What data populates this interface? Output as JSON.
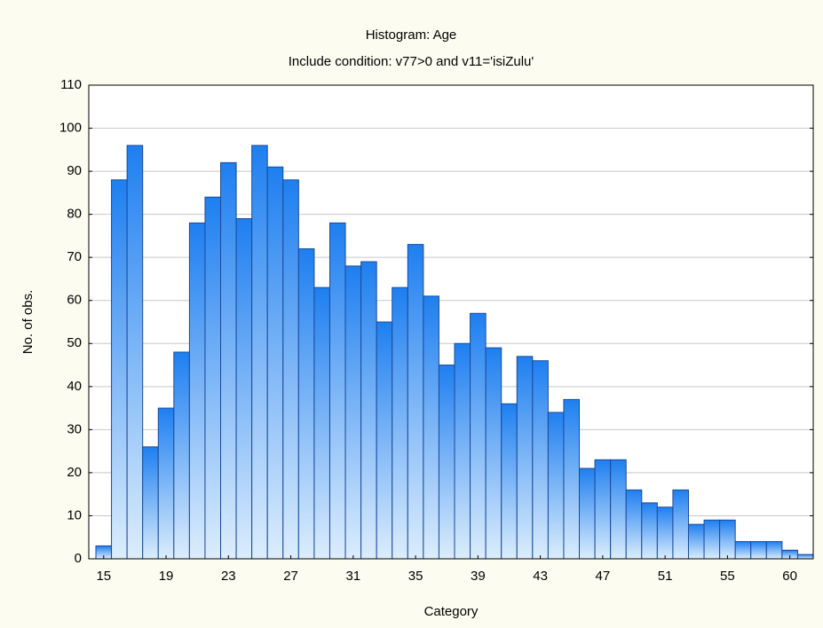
{
  "chart_data": {
    "type": "bar",
    "title": "Histogram: Age",
    "subtitle": "Include condition: v77>0 and v11='isiZulu'",
    "x_label": "Category",
    "y_label": "No. of obs.",
    "categories": [
      "15",
      null,
      null,
      null,
      "19",
      null,
      null,
      null,
      "23",
      null,
      null,
      null,
      "27",
      null,
      null,
      null,
      "31",
      null,
      null,
      null,
      "35",
      null,
      null,
      null,
      "39",
      null,
      null,
      null,
      "43",
      null,
      null,
      null,
      "47",
      null,
      null,
      null,
      "51",
      null,
      null,
      null,
      "55",
      null,
      null,
      null,
      "60",
      null
    ],
    "values": [
      3,
      88,
      96,
      26,
      35,
      48,
      78,
      84,
      92,
      79,
      96,
      91,
      88,
      72,
      63,
      78,
      68,
      69,
      55,
      63,
      73,
      61,
      45,
      50,
      57,
      49,
      36,
      47,
      46,
      34,
      37,
      21,
      23,
      23,
      16,
      13,
      12,
      16,
      8,
      9,
      9,
      4,
      4,
      4,
      2,
      1
    ],
    "color": "#1f7fef",
    "ylim": [
      0,
      110
    ],
    "yticks": [
      0,
      10,
      20,
      30,
      40,
      50,
      60,
      70,
      80,
      90,
      100,
      110
    ],
    "grid": true
  }
}
